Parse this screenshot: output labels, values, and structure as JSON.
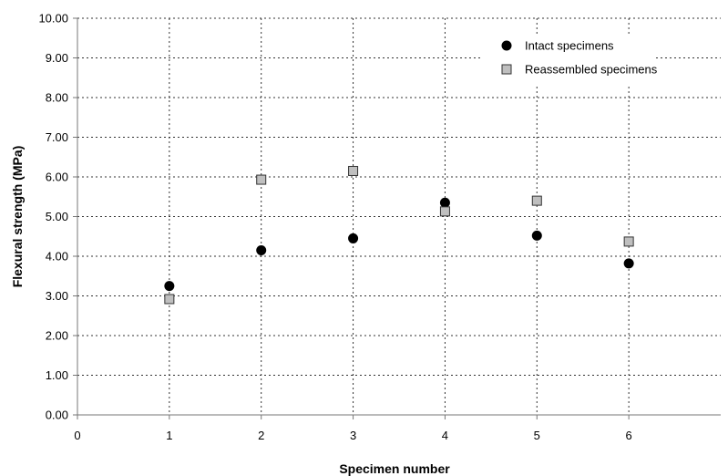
{
  "chart_data": {
    "type": "scatter",
    "title": "",
    "xlabel": "Specimen number",
    "ylabel": "Flexural strength (MPa)",
    "xlim": [
      0,
      7
    ],
    "ylim": [
      0,
      10
    ],
    "xticks": [
      "0",
      "1",
      "2",
      "3",
      "4",
      "5",
      "6"
    ],
    "yticks": [
      "0.00",
      "1.00",
      "2.00",
      "3.00",
      "4.00",
      "5.00",
      "6.00",
      "7.00",
      "8.00",
      "9.00",
      "10.00"
    ],
    "grid": true,
    "legend_position": "top-right",
    "series": [
      {
        "name": "Intact specimens",
        "marker": "circle",
        "color": "#000000",
        "x": [
          1,
          2,
          3,
          4,
          5,
          6
        ],
        "y": [
          3.25,
          4.15,
          4.45,
          5.35,
          4.52,
          3.82
        ]
      },
      {
        "name": "Reassembled specimens",
        "marker": "square",
        "color": "#bfbfbf",
        "x": [
          1,
          2,
          3,
          4,
          5,
          6
        ],
        "y": [
          2.92,
          5.93,
          6.15,
          5.13,
          5.4,
          4.37
        ]
      }
    ]
  }
}
